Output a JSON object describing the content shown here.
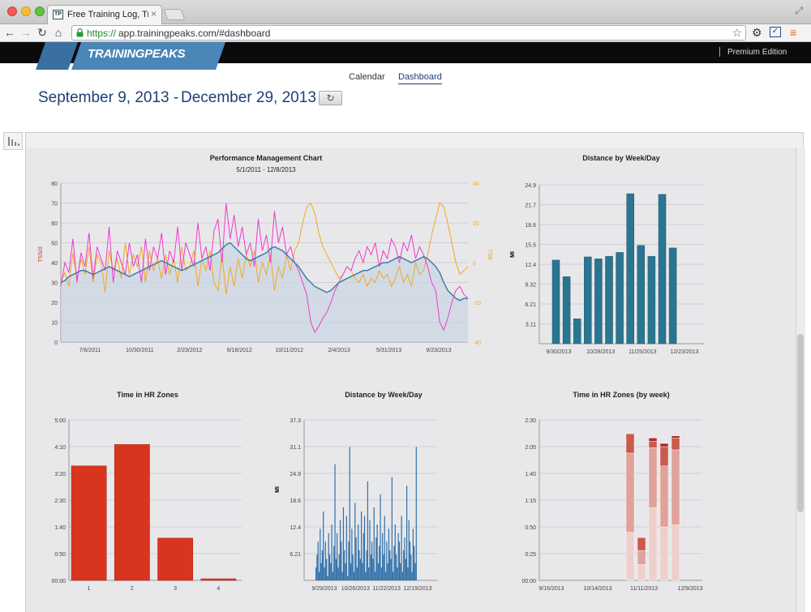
{
  "browser": {
    "tab_title": "Free Training Log, Training",
    "tab_favicon": "TP",
    "url_scheme": "https://",
    "url_rest": "app.trainingpeaks.com/#dashboard"
  },
  "site": {
    "logo": "TRAININGPEAKS",
    "edition": "Premium Edition",
    "nav": {
      "calendar": "Calendar",
      "dashboard": "Dashboard"
    },
    "date_start": "September 9, 2013 -",
    "date_end": "December 29, 2013"
  },
  "colors": {
    "ctl": "#3d7fa6",
    "atl": "#f03acb",
    "tsb": "#f5a623",
    "bar_teal": "#2a7590",
    "bar_red": "#d8351f",
    "bar_blue": "#2f6fa8",
    "zone_colors": [
      "#efcfcb",
      "#e0a29a",
      "#c95a4e",
      "#b02a1f"
    ]
  },
  "chart_data": [
    {
      "type": "line",
      "title": "Performance Management Chart",
      "subtitle": "5/1/2011 - 12/8/2013",
      "ylabel": "TSS/d",
      "y2label": "TSB",
      "yticks": [
        "0",
        "10",
        "20",
        "30",
        "40",
        "50",
        "60",
        "70",
        "80"
      ],
      "y2ticks": [
        "-40",
        "-20",
        "0",
        "20",
        "40"
      ],
      "ylim": [
        0,
        80
      ],
      "y2lim": [
        -40,
        40
      ],
      "xticks": [
        "7/6/2011",
        "10/30/2011",
        "2/23/2012",
        "6/18/2012",
        "10/11/2012",
        "2/4/2013",
        "5/31/2013",
        "9/23/2013"
      ],
      "series": [
        {
          "key": "ctl",
          "values": [
            30,
            31,
            33,
            34,
            35,
            36,
            36,
            35,
            34,
            35,
            36,
            37,
            38,
            37,
            36,
            35,
            34,
            33,
            34,
            35,
            36,
            37,
            38,
            39,
            40,
            41,
            40,
            39,
            38,
            37,
            36,
            37,
            38,
            39,
            40,
            41,
            42,
            43,
            44,
            45,
            47,
            49,
            50,
            48,
            46,
            44,
            42,
            41,
            42,
            43,
            44,
            45,
            47,
            48,
            47,
            46,
            44,
            42,
            40,
            38,
            35,
            32,
            30,
            28,
            27,
            26,
            25,
            26,
            28,
            30,
            31,
            32,
            33,
            34,
            35,
            36,
            36,
            37,
            38,
            39,
            40,
            40,
            41,
            42,
            43,
            42,
            41,
            40,
            41,
            42,
            43,
            42,
            40,
            38,
            35,
            30,
            26,
            24,
            22,
            21,
            22,
            22
          ]
        },
        {
          "key": "atl",
          "values": [
            28,
            40,
            35,
            52,
            30,
            45,
            38,
            55,
            32,
            48,
            42,
            36,
            58,
            30,
            46,
            40,
            34,
            50,
            38,
            44,
            30,
            52,
            36,
            48,
            42,
            55,
            34,
            46,
            40,
            58,
            36,
            50,
            44,
            38,
            60,
            42,
            48,
            36,
            56,
            62,
            40,
            70,
            52,
            64,
            48,
            58,
            44,
            50,
            38,
            62,
            46,
            54,
            40,
            66,
            50,
            58,
            44,
            48,
            40,
            36,
            30,
            24,
            10,
            5,
            8,
            12,
            15,
            20,
            26,
            30,
            34,
            38,
            36,
            42,
            46,
            40,
            48,
            44,
            50,
            38,
            46,
            42,
            52,
            48,
            40,
            50,
            46,
            54,
            42,
            48,
            44,
            38,
            30,
            26,
            10,
            6,
            12,
            20,
            26,
            28,
            24,
            22
          ]
        },
        {
          "key": "tsb",
          "values": [
            -10,
            -5,
            -12,
            5,
            -8,
            2,
            -6,
            8,
            -10,
            4,
            0,
            -15,
            6,
            -4,
            2,
            -8,
            10,
            -6,
            4,
            -2,
            8,
            -10,
            6,
            -4,
            2,
            -8,
            4,
            -6,
            2,
            -10,
            8,
            -4,
            -2,
            6,
            -12,
            2,
            -4,
            6,
            -10,
            -14,
            4,
            -16,
            -2,
            -12,
            2,
            -8,
            4,
            -2,
            6,
            -10,
            0,
            -6,
            4,
            -14,
            -2,
            -8,
            4,
            -4,
            6,
            10,
            20,
            28,
            30,
            25,
            15,
            8,
            4,
            0,
            -4,
            -8,
            -6,
            -2,
            -4,
            -8,
            -10,
            -6,
            -12,
            -8,
            -10,
            -4,
            -8,
            -6,
            -12,
            -8,
            -2,
            -10,
            -6,
            -12,
            0,
            -6,
            -4,
            4,
            14,
            22,
            30,
            28,
            20,
            10,
            0,
            -6,
            -4,
            -2
          ]
        }
      ]
    },
    {
      "type": "bar",
      "title": "Distance by Week/Day",
      "ylabel": "MI",
      "yticks": [
        "3.11",
        "6.21",
        "9.32",
        "12.4",
        "15.5",
        "18.6",
        "21.7",
        "24.9"
      ],
      "ylim": [
        0,
        24.9
      ],
      "xticks": [
        "9/30/2013",
        "10/28/2013",
        "11/25/2013",
        "12/23/2013"
      ],
      "values": [
        13.1,
        10.5,
        3.9,
        13.6,
        13.3,
        13.7,
        14.3,
        23.5,
        15.4,
        13.7,
        23.4,
        15.0
      ]
    },
    {
      "type": "bar",
      "title": "Time in HR Zones",
      "yticks": [
        "00:00",
        "0:50",
        "1:40",
        "2:30",
        "3:20",
        "4:10",
        "5:00"
      ],
      "ylim": [
        0,
        300
      ],
      "categories": [
        "1",
        "2",
        "3",
        "4"
      ],
      "values": [
        214,
        254,
        79,
        3
      ]
    },
    {
      "type": "bar",
      "title": "Distance by Week/Day",
      "ylabel": "MI",
      "yticks": [
        "6.21",
        "12.4",
        "18.6",
        "24.9",
        "31.1",
        "37.3"
      ],
      "ylim": [
        0,
        37.3
      ],
      "xticks": [
        "9/29/2013",
        "10/26/2013",
        "11/22/2013",
        "12/19/2013"
      ],
      "values": [
        3,
        6,
        9,
        2,
        12,
        4,
        7,
        16,
        3,
        9,
        5,
        1,
        11,
        6,
        4,
        13,
        2,
        8,
        27,
        5,
        11,
        3,
        6,
        14,
        9,
        2,
        17,
        7,
        4,
        15,
        1,
        9,
        31,
        4,
        12,
        6,
        2,
        18,
        10,
        3,
        13,
        7,
        5,
        16,
        4,
        11,
        15,
        2,
        7,
        23,
        3,
        14,
        6,
        9,
        5,
        17,
        2,
        10,
        13,
        4,
        8,
        20,
        3,
        11,
        6,
        15,
        2,
        9,
        4,
        12,
        7,
        5,
        24,
        2,
        8,
        13,
        6,
        3,
        11,
        9,
        4,
        15,
        2,
        7,
        10,
        5,
        22,
        3,
        14,
        9,
        6,
        2,
        12,
        8,
        4,
        31
      ]
    },
    {
      "type": "bar",
      "title": "Time in HR Zones (by week)",
      "yticks": [
        "00:00",
        "0:25",
        "0:50",
        "1:15",
        "1:40",
        "2:05",
        "2:30"
      ],
      "ylim": [
        0,
        150
      ],
      "xticks": [
        "9/16/2013",
        "10/14/2013",
        "11/11/2013",
        "12/9/2013"
      ],
      "weeks": [
        {
          "z1": 45,
          "z2": 74,
          "z3": 18,
          "z4": 0
        },
        {
          "z1": 15,
          "z2": 13,
          "z3": 12,
          "z4": 0
        },
        {
          "z1": 68,
          "z2": 56,
          "z3": 6,
          "z4": 3
        },
        {
          "z1": 50,
          "z2": 57,
          "z3": 18,
          "z4": 3
        },
        {
          "z1": 52,
          "z2": 70,
          "z3": 11,
          "z4": 2
        }
      ]
    }
  ]
}
